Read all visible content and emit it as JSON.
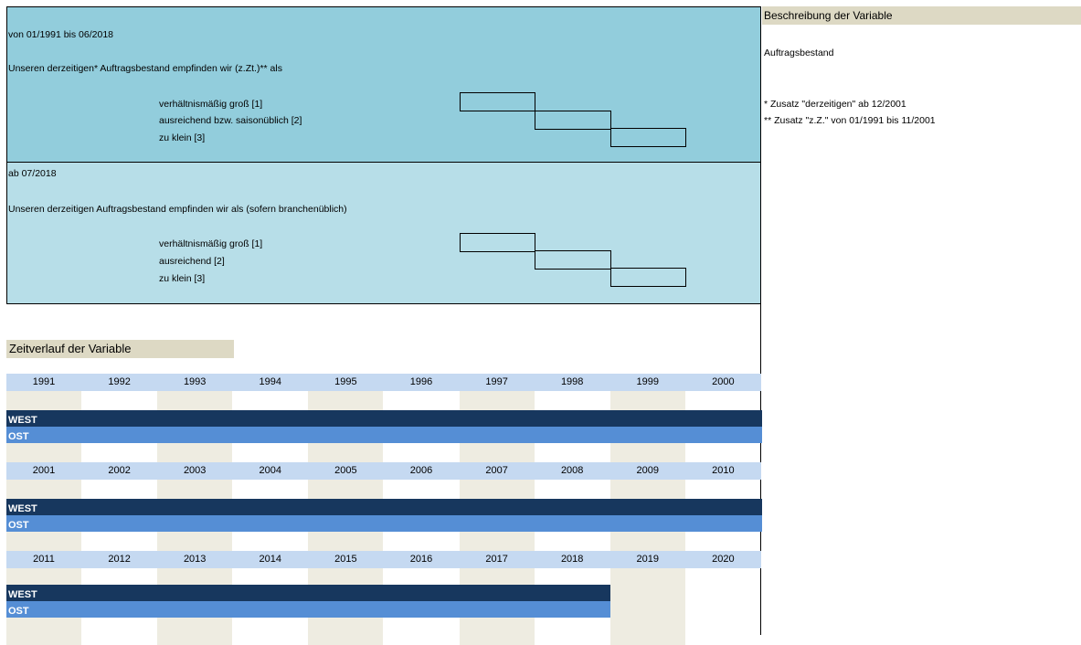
{
  "panel_old": {
    "period": "von 01/1991 bis 06/2018",
    "question": "Unseren derzeitigen* Auftragsbestand empfinden wir (z.Zt.)** als",
    "options": [
      "verhältnismäßig groß [1]",
      "ausreichend bzw. saisonüblich [2]",
      "zu klein [3]"
    ]
  },
  "panel_new": {
    "period": "ab 07/2018",
    "question": "Unseren derzeitigen Auftragsbestand empfinden wir als (sofern branchenüblich)",
    "options": [
      "verhältnismäßig groß [1]",
      "ausreichend [2]",
      "zu klein [3]"
    ]
  },
  "description": {
    "header": "Beschreibung der Variable",
    "variable": "Auftragsbestand",
    "note1": "* Zusatz \"derzeitigen\" ab 12/2001",
    "note2": "** Zusatz \"z.Z.\" von 01/1991 bis 11/2001"
  },
  "timeline": {
    "header": "Zeitverlauf der Variable",
    "decades": [
      {
        "years": [
          "1991",
          "1992",
          "1993",
          "1994",
          "1995",
          "1996",
          "1997",
          "1998",
          "1999",
          "2000"
        ],
        "west": "WEST",
        "ost": "OST",
        "coverage_years": 10
      },
      {
        "years": [
          "2001",
          "2002",
          "2003",
          "2004",
          "2005",
          "2006",
          "2007",
          "2008",
          "2009",
          "2010"
        ],
        "west": "WEST",
        "ost": "OST",
        "coverage_years": 10
      },
      {
        "years": [
          "2011",
          "2012",
          "2013",
          "2014",
          "2015",
          "2016",
          "2017",
          "2018",
          "2019",
          "2020"
        ],
        "west": "WEST",
        "ost": "OST",
        "coverage_years": 8
      }
    ]
  }
}
